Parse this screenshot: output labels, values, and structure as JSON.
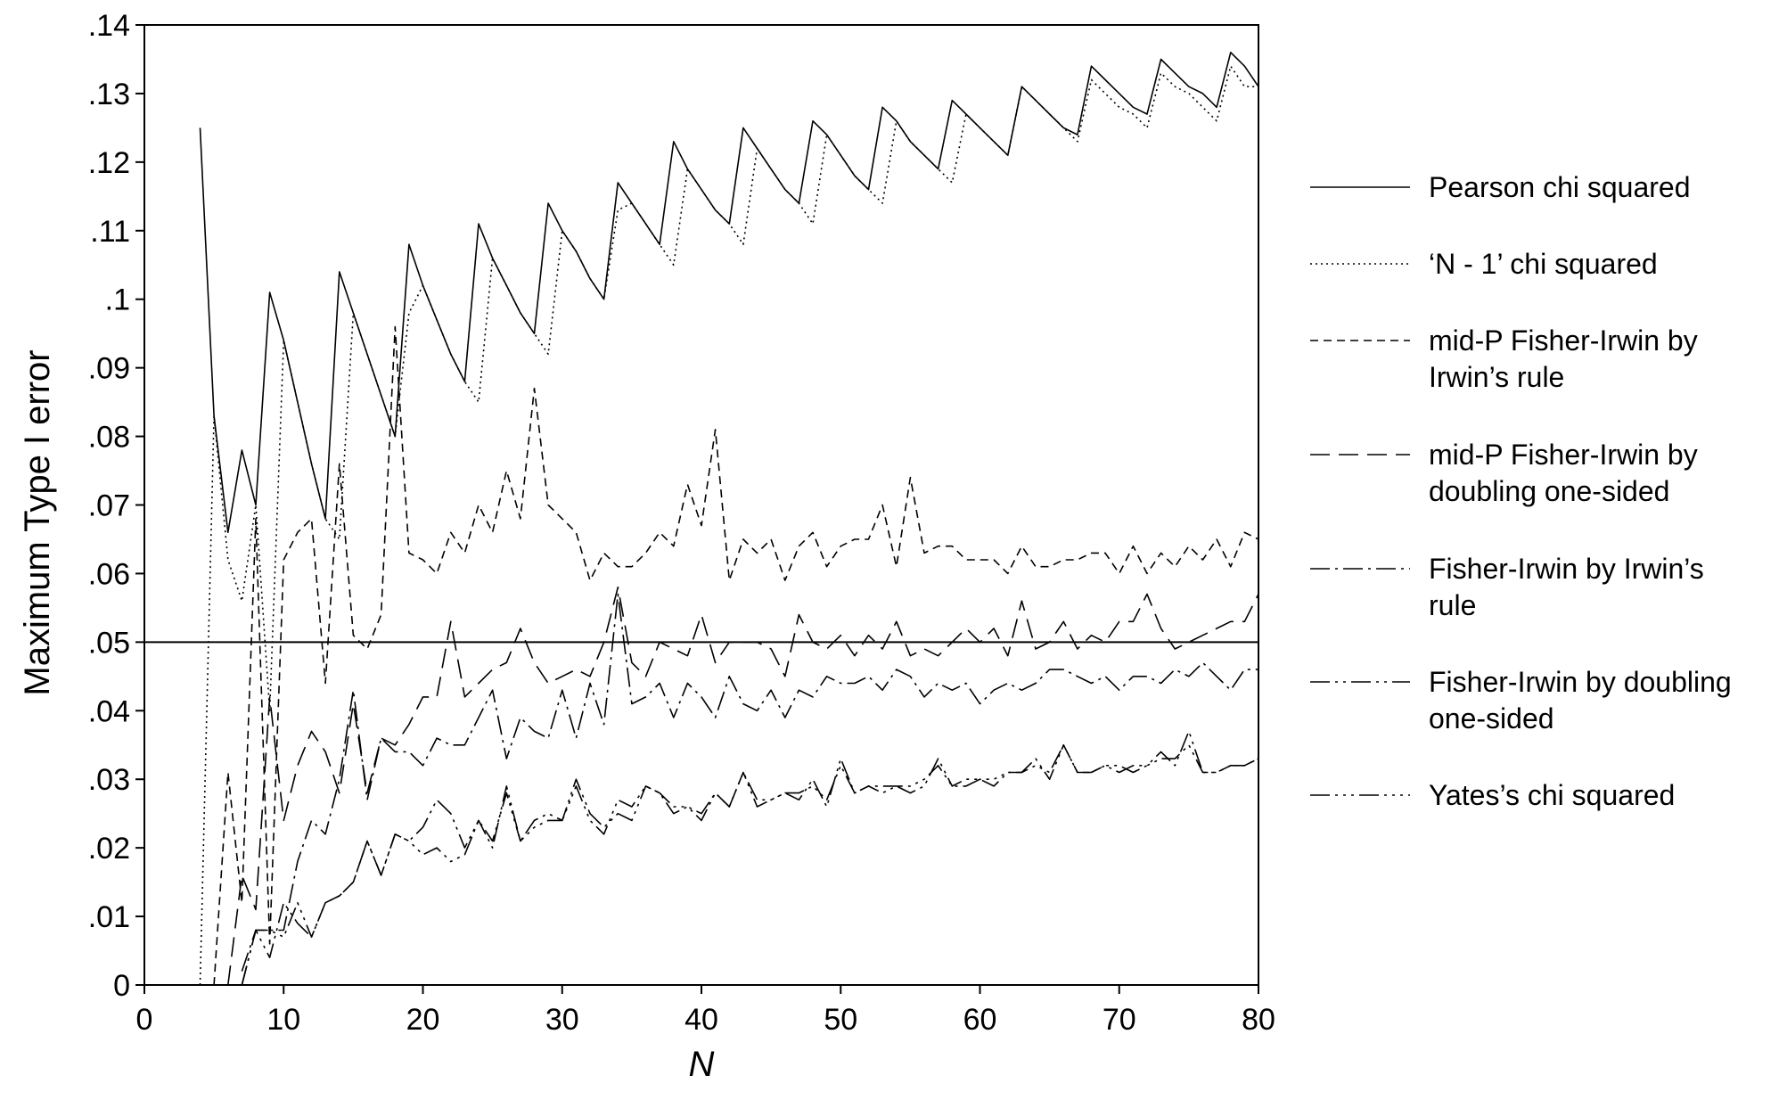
{
  "chart_data": {
    "type": "line",
    "title": "",
    "xlabel": "N",
    "ylabel": "Maximum Type I error",
    "xlim": [
      0,
      80
    ],
    "ylim": [
      0,
      0.14
    ],
    "x_ticks": [
      0,
      10,
      20,
      30,
      40,
      50,
      60,
      70,
      80
    ],
    "x_tick_labels": [
      "0",
      "10",
      "20",
      "30",
      "40",
      "50",
      "60",
      "70",
      "80"
    ],
    "y_ticks": [
      0,
      0.01,
      0.02,
      0.03,
      0.04,
      0.05,
      0.06,
      0.07,
      0.08,
      0.09,
      0.1,
      0.11,
      0.12,
      0.13,
      0.14
    ],
    "y_tick_labels": [
      "0",
      ".01",
      ".02",
      ".03",
      ".04",
      ".05",
      ".06",
      ".07",
      ".08",
      ".09",
      ".1",
      ".11",
      ".12",
      ".13",
      ".14"
    ],
    "reference_line": 0.05,
    "grid": false,
    "legend_position": "right",
    "legend": [
      {
        "lines": [
          "Pearson chi squared"
        ],
        "dash": "none"
      },
      {
        "lines": [
          "‘N - 1’ chi squared"
        ],
        "dash": "2,4"
      },
      {
        "lines": [
          "mid-P Fisher-Irwin by",
          "Irwin’s  rule"
        ],
        "dash": "9,6"
      },
      {
        "lines": [
          "mid-P Fisher-Irwin by",
          "doubling  one-sided"
        ],
        "dash": "22,10"
      },
      {
        "lines": [
          "Fisher-Irwin by Irwin’s",
          "rule"
        ],
        "dash": "22,6,3,6"
      },
      {
        "lines": [
          "Fisher-Irwin by doubling",
          "one-sided"
        ],
        "dash": "22,6,3,6,3,6"
      },
      {
        "lines": [
          "Yates’s chi squared"
        ],
        "dash": "22,6,3,6,3,6,3,6"
      }
    ],
    "series": [
      {
        "dash": "none",
        "x": [
          4,
          5,
          6,
          7,
          8,
          9,
          10,
          11,
          12,
          13,
          14,
          15,
          16,
          17,
          18,
          19,
          20,
          21,
          22,
          23,
          24,
          25,
          26,
          27,
          28,
          29,
          30,
          31,
          32,
          33,
          34,
          35,
          36,
          37,
          38,
          39,
          40,
          41,
          42,
          43,
          44,
          45,
          46,
          47,
          48,
          49,
          50,
          51,
          52,
          53,
          54,
          55,
          56,
          57,
          58,
          59,
          60,
          61,
          62,
          63,
          64,
          65,
          66,
          67,
          68,
          69,
          70,
          71,
          72,
          73,
          74,
          75,
          76,
          77,
          78,
          79,
          80
        ],
        "y": [
          0.125,
          0.083,
          0.066,
          0.078,
          0.07,
          0.101,
          0.094,
          0.085,
          0.076,
          0.068,
          0.104,
          0.098,
          0.092,
          0.086,
          0.08,
          0.108,
          0.102,
          0.097,
          0.092,
          0.088,
          0.111,
          0.106,
          0.102,
          0.098,
          0.095,
          0.114,
          0.11,
          0.107,
          0.103,
          0.1,
          0.117,
          0.114,
          0.111,
          0.108,
          0.123,
          0.119,
          0.116,
          0.113,
          0.111,
          0.125,
          0.122,
          0.119,
          0.116,
          0.114,
          0.126,
          0.124,
          0.121,
          0.118,
          0.116,
          0.128,
          0.126,
          0.123,
          0.121,
          0.119,
          0.129,
          0.127,
          0.125,
          0.123,
          0.121,
          0.131,
          0.129,
          0.127,
          0.125,
          0.124,
          0.134,
          0.132,
          0.13,
          0.128,
          0.127,
          0.135,
          0.133,
          0.131,
          0.13,
          0.128,
          0.136,
          0.134,
          0.131
        ]
      },
      {
        "dash": "2,4",
        "x": [
          4,
          5,
          6,
          7,
          8,
          9,
          10,
          11,
          12,
          13,
          14,
          15,
          16,
          17,
          18,
          19,
          20,
          21,
          22,
          23,
          24,
          25,
          26,
          27,
          28,
          29,
          30,
          31,
          32,
          33,
          34,
          35,
          36,
          37,
          38,
          39,
          40,
          41,
          42,
          43,
          44,
          45,
          46,
          47,
          48,
          49,
          50,
          51,
          52,
          53,
          54,
          55,
          56,
          57,
          58,
          59,
          60,
          61,
          62,
          63,
          64,
          65,
          66,
          67,
          68,
          69,
          70,
          71,
          72,
          73,
          74,
          75,
          76,
          77,
          78,
          79,
          80
        ],
        "y": [
          0,
          0.083,
          0.062,
          0.056,
          0.07,
          0.04,
          0.094,
          0.085,
          0.076,
          0.068,
          0.065,
          0.098,
          0.092,
          0.086,
          0.08,
          0.098,
          0.102,
          0.097,
          0.092,
          0.088,
          0.085,
          0.106,
          0.102,
          0.098,
          0.095,
          0.092,
          0.11,
          0.107,
          0.103,
          0.1,
          0.113,
          0.114,
          0.111,
          0.108,
          0.105,
          0.119,
          0.116,
          0.113,
          0.111,
          0.108,
          0.122,
          0.119,
          0.116,
          0.114,
          0.111,
          0.124,
          0.121,
          0.118,
          0.116,
          0.114,
          0.126,
          0.123,
          0.121,
          0.119,
          0.117,
          0.127,
          0.125,
          0.123,
          0.121,
          0.131,
          0.129,
          0.127,
          0.125,
          0.123,
          0.132,
          0.13,
          0.128,
          0.127,
          0.125,
          0.133,
          0.131,
          0.13,
          0.128,
          0.126,
          0.134,
          0.131,
          0.131
        ]
      },
      {
        "dash": "9,6",
        "x": [
          5,
          6,
          7,
          8,
          9,
          10,
          11,
          12,
          13,
          14,
          15,
          16,
          17,
          18,
          19,
          20,
          21,
          22,
          23,
          24,
          25,
          26,
          27,
          28,
          29,
          30,
          31,
          32,
          33,
          34,
          35,
          36,
          37,
          38,
          39,
          40,
          41,
          42,
          43,
          44,
          45,
          46,
          47,
          48,
          49,
          50,
          51,
          52,
          53,
          54,
          55,
          56,
          57,
          58,
          59,
          60,
          61,
          62,
          63,
          64,
          65,
          66,
          67,
          68,
          69,
          70,
          71,
          72,
          73,
          74,
          75,
          76,
          77,
          78,
          79,
          80
        ],
        "y": [
          0,
          0.031,
          0.012,
          0.068,
          0.006,
          0.062,
          0.066,
          0.068,
          0.044,
          0.076,
          0.051,
          0.049,
          0.054,
          0.096,
          0.063,
          0.062,
          0.06,
          0.066,
          0.063,
          0.07,
          0.066,
          0.075,
          0.068,
          0.087,
          0.07,
          0.068,
          0.066,
          0.059,
          0.063,
          0.061,
          0.061,
          0.063,
          0.066,
          0.064,
          0.073,
          0.067,
          0.081,
          0.059,
          0.065,
          0.063,
          0.065,
          0.059,
          0.064,
          0.066,
          0.061,
          0.064,
          0.065,
          0.065,
          0.07,
          0.061,
          0.074,
          0.063,
          0.064,
          0.064,
          0.062,
          0.062,
          0.062,
          0.06,
          0.064,
          0.061,
          0.061,
          0.062,
          0.062,
          0.063,
          0.063,
          0.06,
          0.064,
          0.06,
          0.063,
          0.061,
          0.064,
          0.062,
          0.065,
          0.061,
          0.066,
          0.065
        ]
      },
      {
        "dash": "22,10",
        "x": [
          6,
          7,
          8,
          9,
          10,
          11,
          12,
          13,
          14,
          15,
          16,
          17,
          18,
          19,
          20,
          21,
          22,
          23,
          24,
          25,
          26,
          27,
          28,
          29,
          30,
          31,
          32,
          33,
          34,
          35,
          36,
          37,
          38,
          39,
          40,
          41,
          42,
          43,
          44,
          45,
          46,
          47,
          48,
          49,
          50,
          51,
          52,
          53,
          54,
          55,
          56,
          57,
          58,
          59,
          60,
          61,
          62,
          63,
          64,
          65,
          66,
          67,
          68,
          69,
          70,
          71,
          72,
          73,
          74,
          75,
          76,
          77,
          78,
          79,
          80
        ],
        "y": [
          0,
          0.016,
          0.011,
          0.042,
          0.024,
          0.032,
          0.037,
          0.034,
          0.028,
          0.041,
          0.028,
          0.036,
          0.035,
          0.038,
          0.042,
          0.042,
          0.053,
          0.042,
          0.044,
          0.046,
          0.047,
          0.052,
          0.047,
          0.044,
          0.045,
          0.046,
          0.045,
          0.05,
          0.058,
          0.047,
          0.045,
          0.05,
          0.049,
          0.048,
          0.054,
          0.047,
          0.05,
          0.05,
          0.05,
          0.049,
          0.045,
          0.054,
          0.05,
          0.049,
          0.051,
          0.048,
          0.051,
          0.049,
          0.053,
          0.048,
          0.049,
          0.048,
          0.05,
          0.052,
          0.05,
          0.052,
          0.048,
          0.056,
          0.049,
          0.05,
          0.053,
          0.049,
          0.051,
          0.05,
          0.053,
          0.053,
          0.057,
          0.052,
          0.049,
          0.05,
          0.051,
          0.052,
          0.053,
          0.053,
          0.057
        ]
      },
      {
        "dash": "22,6,3,6",
        "x": [
          7,
          8,
          9,
          10,
          11,
          12,
          13,
          14,
          15,
          16,
          17,
          18,
          19,
          20,
          21,
          22,
          23,
          24,
          25,
          26,
          27,
          28,
          29,
          30,
          31,
          32,
          33,
          34,
          35,
          36,
          37,
          38,
          39,
          40,
          41,
          42,
          43,
          44,
          45,
          46,
          47,
          48,
          49,
          50,
          51,
          52,
          53,
          54,
          55,
          56,
          57,
          58,
          59,
          60,
          61,
          62,
          63,
          64,
          65,
          66,
          67,
          68,
          69,
          70,
          71,
          72,
          73,
          74,
          75,
          76,
          77,
          78,
          79,
          80
        ],
        "y": [
          0.002,
          0.008,
          0.008,
          0.008,
          0.018,
          0.024,
          0.022,
          0.03,
          0.043,
          0.027,
          0.036,
          0.034,
          0.034,
          0.032,
          0.036,
          0.035,
          0.035,
          0.039,
          0.043,
          0.033,
          0.039,
          0.037,
          0.036,
          0.043,
          0.036,
          0.044,
          0.038,
          0.057,
          0.041,
          0.042,
          0.044,
          0.039,
          0.044,
          0.042,
          0.039,
          0.045,
          0.041,
          0.04,
          0.043,
          0.039,
          0.043,
          0.042,
          0.045,
          0.044,
          0.044,
          0.045,
          0.043,
          0.046,
          0.045,
          0.042,
          0.044,
          0.043,
          0.044,
          0.041,
          0.043,
          0.044,
          0.043,
          0.044,
          0.046,
          0.046,
          0.045,
          0.044,
          0.045,
          0.043,
          0.045,
          0.045,
          0.044,
          0.046,
          0.045,
          0.047,
          0.045,
          0.043,
          0.046,
          0.046
        ]
      },
      {
        "dash": "22,6,3,6,3,6",
        "x": [
          7,
          8,
          9,
          10,
          11,
          12,
          13,
          14,
          15,
          16,
          17,
          18,
          19,
          20,
          21,
          22,
          23,
          24,
          25,
          26,
          27,
          28,
          29,
          30,
          31,
          32,
          33,
          34,
          35,
          36,
          37,
          38,
          39,
          40,
          41,
          42,
          43,
          44,
          45,
          46,
          47,
          48,
          49,
          50,
          51,
          52,
          53,
          54,
          55,
          56,
          57,
          58,
          59,
          60,
          61,
          62,
          63,
          64,
          65,
          66,
          67,
          68,
          69,
          70,
          71,
          72,
          73,
          74,
          75,
          76,
          77,
          78,
          79,
          80
        ],
        "y": [
          0,
          0.008,
          0.004,
          0.012,
          0.009,
          0.007,
          0.012,
          0.013,
          0.015,
          0.021,
          0.016,
          0.022,
          0.021,
          0.023,
          0.027,
          0.025,
          0.02,
          0.024,
          0.02,
          0.029,
          0.021,
          0.024,
          0.025,
          0.024,
          0.03,
          0.025,
          0.023,
          0.025,
          0.024,
          0.029,
          0.028,
          0.025,
          0.026,
          0.024,
          0.028,
          0.026,
          0.031,
          0.026,
          0.027,
          0.028,
          0.027,
          0.03,
          0.026,
          0.033,
          0.028,
          0.029,
          0.028,
          0.029,
          0.028,
          0.029,
          0.033,
          0.029,
          0.03,
          0.03,
          0.029,
          0.031,
          0.031,
          0.033,
          0.03,
          0.035,
          0.031,
          0.031,
          0.032,
          0.032,
          0.031,
          0.032,
          0.034,
          0.032,
          0.037,
          0.031,
          0.031,
          0.032,
          0.032,
          0.033
        ]
      },
      {
        "dash": "22,6,3,6,3,6,3,6",
        "x": [
          7,
          8,
          9,
          10,
          11,
          12,
          13,
          14,
          15,
          16,
          17,
          18,
          19,
          20,
          21,
          22,
          23,
          24,
          25,
          26,
          27,
          28,
          29,
          30,
          31,
          32,
          33,
          34,
          35,
          36,
          37,
          38,
          39,
          40,
          41,
          42,
          43,
          44,
          45,
          46,
          47,
          48,
          49,
          50,
          51,
          52,
          53,
          54,
          55,
          56,
          57,
          58,
          59,
          60,
          61,
          62,
          63,
          64,
          65,
          66,
          67,
          68,
          69,
          70,
          71,
          72,
          73,
          74,
          75,
          76,
          77,
          78,
          79,
          80
        ],
        "y": [
          0,
          0.008,
          0.008,
          0.007,
          0.012,
          0.007,
          0.012,
          0.013,
          0.015,
          0.021,
          0.016,
          0.022,
          0.021,
          0.019,
          0.02,
          0.018,
          0.019,
          0.024,
          0.021,
          0.028,
          0.021,
          0.023,
          0.024,
          0.024,
          0.029,
          0.024,
          0.022,
          0.027,
          0.026,
          0.029,
          0.028,
          0.026,
          0.026,
          0.025,
          0.028,
          0.026,
          0.031,
          0.027,
          0.027,
          0.028,
          0.028,
          0.029,
          0.027,
          0.032,
          0.028,
          0.029,
          0.029,
          0.029,
          0.029,
          0.03,
          0.032,
          0.029,
          0.029,
          0.03,
          0.03,
          0.031,
          0.031,
          0.032,
          0.031,
          0.035,
          0.031,
          0.031,
          0.032,
          0.031,
          0.032,
          0.032,
          0.033,
          0.033,
          0.035,
          0.031,
          0.031,
          0.032,
          0.032,
          0.033
        ]
      }
    ]
  }
}
